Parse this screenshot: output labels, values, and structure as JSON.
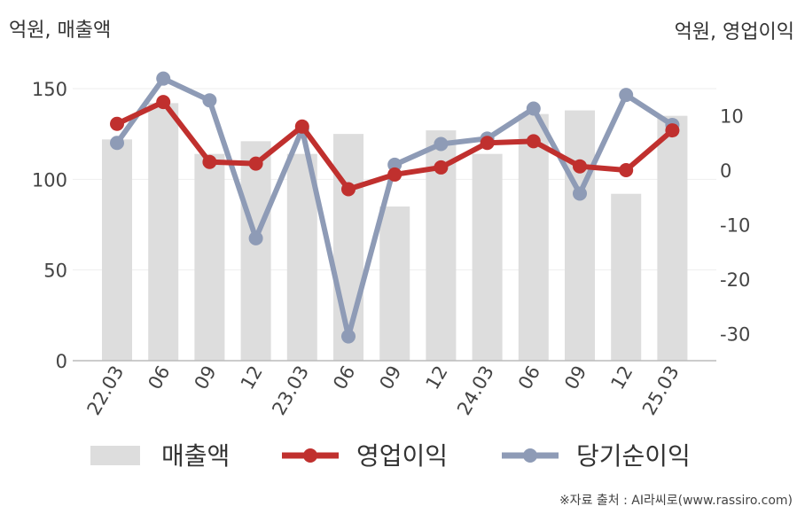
{
  "chart_data": {
    "type": "bar+line",
    "left_unit": "억원, 매출액",
    "right_unit": "억원, 영업이익",
    "categories": [
      "22.03",
      "06",
      "09",
      "12",
      "23.03",
      "06",
      "09",
      "12",
      "24.03",
      "06",
      "09",
      "12",
      "25.03"
    ],
    "left_axis": {
      "ylim": [
        0,
        150
      ],
      "ticks": [
        0,
        50,
        100,
        150
      ]
    },
    "right_axis": {
      "ylim": [
        -35,
        18
      ],
      "ticks": [
        10,
        0,
        -10,
        -20,
        -30
      ]
    },
    "series": [
      {
        "name": "매출액",
        "type": "bar",
        "axis": "left",
        "color": "#dddddd",
        "values": [
          122,
          142,
          114,
          121,
          114,
          125,
          85,
          127,
          114,
          136,
          138,
          92,
          135
        ]
      },
      {
        "name": "영업이익",
        "type": "line",
        "axis": "right",
        "color": "#c0302e",
        "values": [
          8.5,
          12.5,
          1.5,
          1.2,
          8.0,
          -3.5,
          -0.8,
          0.5,
          5.0,
          5.3,
          0.7,
          0,
          7.3
        ]
      },
      {
        "name": "당기순이익",
        "type": "line",
        "axis": "right",
        "color": "#8e9bb6",
        "values": [
          5.0,
          16.8,
          12.8,
          -12.5,
          7.5,
          -30.5,
          1.0,
          4.8,
          5.8,
          11.3,
          -4.3,
          13.8,
          8.3
        ]
      }
    ],
    "grid": true,
    "legend": "bottom"
  },
  "legend": {
    "bar_label": "매출액",
    "line1_label": "영업이익",
    "line2_label": "당기순이익"
  },
  "source": "※자료 출처 : AI라씨로(www.rassiro.com)"
}
